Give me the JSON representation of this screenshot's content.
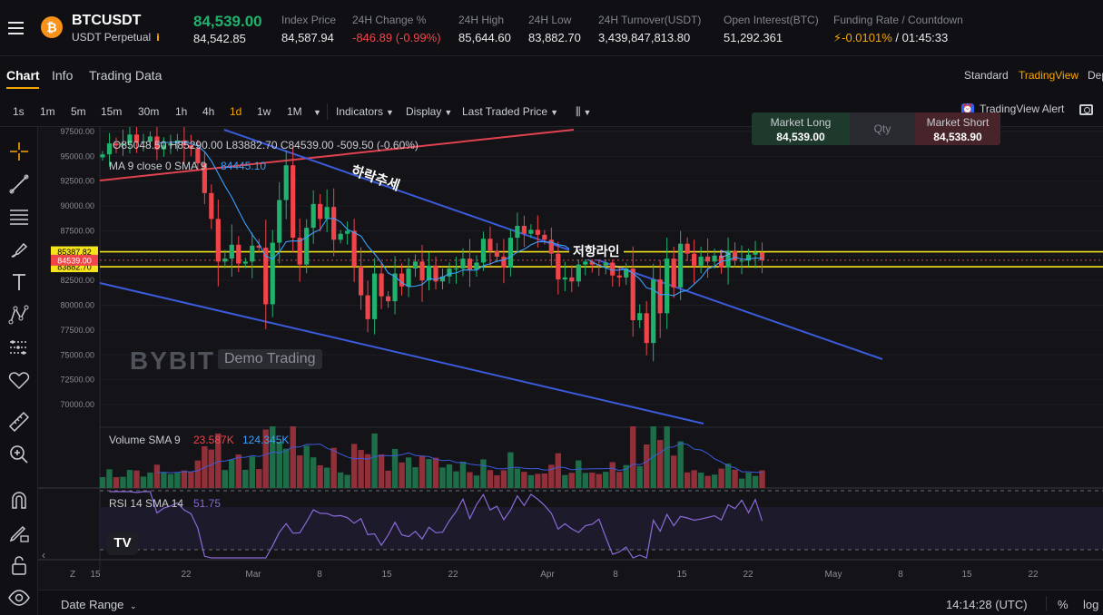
{
  "ticker": {
    "symbol": "BTCUSDT",
    "contract": "USDT Perpetual",
    "last_price": "84,539.00",
    "mark_price": "84,542.85",
    "stats": [
      {
        "label": "Index Price",
        "value": "84,587.94"
      },
      {
        "label": "24H Change %",
        "value": "-846.89 (-0.99%)"
      },
      {
        "label": "24H High",
        "value": "85,644.60"
      },
      {
        "label": "24H Low",
        "value": "83,882.70"
      },
      {
        "label": "24H Turnover(USDT)",
        "value": "3,439,847,813.80"
      },
      {
        "label": "Open Interest(BTC)",
        "value": "51,292.361"
      }
    ],
    "funding_label": "Funding Rate / Countdown",
    "funding_rate": "-0.0101%",
    "countdown": "/ 01:45:33"
  },
  "tabs": [
    "Chart",
    "Info",
    "Trading Data"
  ],
  "view_modes": [
    "Standard",
    "TradingView",
    "Dep"
  ],
  "timeframes": [
    "1s",
    "1m",
    "5m",
    "15m",
    "30m",
    "1h",
    "4h",
    "1d",
    "1w",
    "1M"
  ],
  "active_timeframe": "1d",
  "toolbar": {
    "indicators": "Indicators",
    "display": "Display",
    "price_type": "Last Traded Price",
    "alert": "TradingView Alert"
  },
  "order_panel": {
    "long_label": "Market Long",
    "long_price": "84,539.00",
    "qty_label": "Qty",
    "short_label": "Market Short",
    "short_price": "84,538.90"
  },
  "legend": {
    "ohlc": "O85048.50 H85290.00 L83882.70 C84539.00 -509.50 (-0.60%)",
    "ma_label": "MA 9 close 0 SMA 9",
    "ma_value": "84445.10",
    "volume_label": "Volume SMA 9",
    "volume_v1": "23.587K",
    "volume_v2": "124.345K",
    "rsi_label": "RSI 14 SMA 14",
    "rsi_value": "51.75"
  },
  "annotations": {
    "downtrend": "하락추세",
    "resistance": "저항라인"
  },
  "watermark": {
    "brand": "BYBIT",
    "demo": "Demo Trading"
  },
  "chart_data": {
    "type": "candlestick",
    "y_ticks": [
      "97500.00",
      "95000.00",
      "92500.00",
      "90000.00",
      "87500.00",
      "85000.00",
      "82500.00",
      "80000.00",
      "77500.00",
      "75000.00",
      "72500.00",
      "70000.00"
    ],
    "price_tags": {
      "upper": "85387.82",
      "current": "84539.00",
      "lower": "83882.70"
    },
    "resistance_levels": [
      85387.82,
      83882.7
    ],
    "x_ticks": [
      "15",
      "22",
      "Mar",
      "8",
      "15",
      "22",
      "Apr",
      "8",
      "15",
      "22",
      "May",
      "8",
      "15",
      "22"
    ],
    "colors": {
      "up": "#20b26c",
      "down": "#ef454a",
      "ma": "#3aa0ff",
      "trend": "#3b5bdb",
      "resistance": "#f5e31b",
      "rsi": "#8b6ad8"
    },
    "closes": [
      95200,
      96300,
      96100,
      96300,
      97200,
      96400,
      96500,
      97000,
      95700,
      96100,
      96300,
      96600,
      96100,
      95800,
      94300,
      91300,
      88700,
      84400,
      84700,
      86100,
      84200,
      84400,
      86000,
      85800,
      80100,
      86300,
      90600,
      94100,
      86800,
      84100,
      87800,
      90200,
      88700,
      89900,
      86600,
      87200,
      87500,
      83900,
      81000,
      78600,
      83200,
      80900,
      80400,
      83200,
      81900,
      83700,
      84400,
      82500,
      84000,
      82400,
      82900,
      83700,
      83700,
      84700,
      83600,
      84300,
      86700,
      85500,
      84900,
      83800,
      86800,
      88000,
      87200,
      87600,
      87100,
      86600,
      85200,
      82600,
      82800,
      82400,
      84100,
      84400,
      84100,
      84000,
      84300,
      83000,
      82800,
      83700,
      78500,
      79200,
      76200,
      82600,
      79200,
      84700,
      81800,
      86200,
      85200,
      84000,
      84900,
      84400,
      85000,
      83800,
      85500,
      84500,
      84500,
      85100,
      85300,
      84539
    ],
    "volume_sma": "124.345K",
    "rsi_last": 51.75
  },
  "status": {
    "date_range": "Date Range",
    "time": "14:14:28 (UTC)",
    "percent": "%",
    "log": "log"
  }
}
